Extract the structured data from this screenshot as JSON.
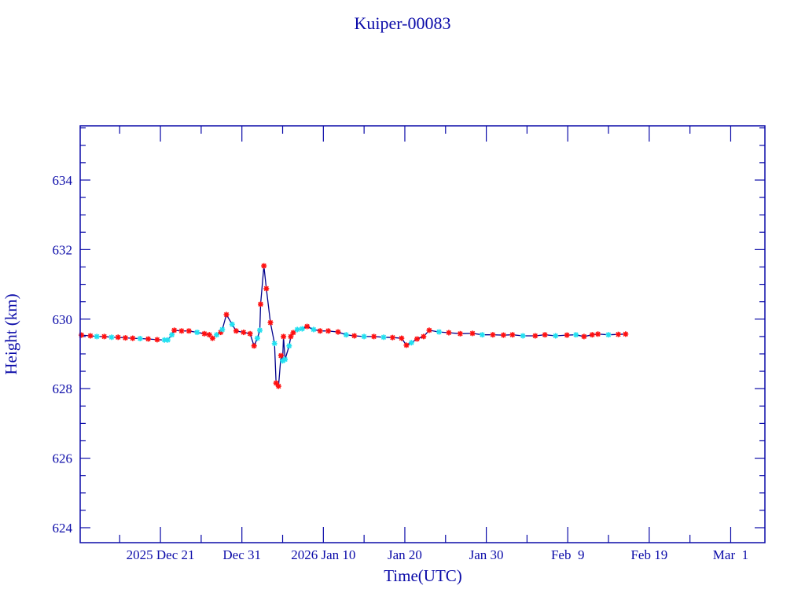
{
  "chart_data": {
    "type": "line",
    "title": "Kuiper-00083",
    "xlabel": "Time(UTC)",
    "ylabel": "Height (km)",
    "x_units": "days since 2025 Dec 21 (UTC)",
    "xlim": [
      -9.85,
      74.2
    ],
    "ylim": [
      623.57,
      635.56
    ],
    "grid": false,
    "legend": "none",
    "x_major_step": 10,
    "x_minor_step": 5,
    "y_major_step": 2,
    "y_minor_step": 0.5,
    "x_ticks": [
      {
        "value": 0,
        "label": "2025 Dec 21"
      },
      {
        "value": 10,
        "label": "Dec 31"
      },
      {
        "value": 20,
        "label": "2026 Jan 10"
      },
      {
        "value": 30,
        "label": "Jan 20"
      },
      {
        "value": 40,
        "label": "Jan 30"
      },
      {
        "value": 50,
        "label": "Feb  9"
      },
      {
        "value": 60,
        "label": "Feb 19"
      },
      {
        "value": 70,
        "label": "Mar  1"
      }
    ],
    "y_ticks": [
      {
        "value": 624,
        "label": "624"
      },
      {
        "value": 626,
        "label": "626"
      },
      {
        "value": 628,
        "label": "628"
      },
      {
        "value": 630,
        "label": "630"
      },
      {
        "value": 632,
        "label": "632"
      },
      {
        "value": 634,
        "label": "634"
      }
    ],
    "colors": {
      "axis": "#0a0aa8",
      "line": "#00008b",
      "marker_a": "#ff1010",
      "marker_b": "#22e0f0"
    },
    "series": [
      {
        "name": "height",
        "points": [
          [
            -9.7,
            629.54,
            "a"
          ],
          [
            -8.6,
            629.52,
            "a"
          ],
          [
            -7.8,
            629.5,
            "b"
          ],
          [
            -6.9,
            629.5,
            "a"
          ],
          [
            -6.0,
            629.48,
            "b"
          ],
          [
            -5.2,
            629.48,
            "a"
          ],
          [
            -4.3,
            629.46,
            "a"
          ],
          [
            -3.4,
            629.45,
            "a"
          ],
          [
            -2.5,
            629.44,
            "b"
          ],
          [
            -1.5,
            629.43,
            "a"
          ],
          [
            -0.4,
            629.41,
            "a"
          ],
          [
            0.5,
            629.4,
            "b"
          ],
          [
            0.9,
            629.4,
            "b"
          ],
          [
            1.4,
            629.55,
            "b"
          ],
          [
            1.7,
            629.68,
            "a"
          ],
          [
            2.6,
            629.66,
            "a"
          ],
          [
            3.5,
            629.66,
            "a"
          ],
          [
            4.5,
            629.62,
            "b"
          ],
          [
            5.4,
            629.58,
            "a"
          ],
          [
            6.0,
            629.55,
            "a"
          ],
          [
            6.4,
            629.45,
            "a"
          ],
          [
            6.9,
            629.55,
            "b"
          ],
          [
            7.4,
            629.62,
            "a"
          ],
          [
            7.6,
            629.7,
            "b"
          ],
          [
            8.1,
            630.13,
            "a"
          ],
          [
            8.8,
            629.85,
            "b"
          ],
          [
            9.3,
            629.66,
            "a"
          ],
          [
            10.2,
            629.62,
            "a"
          ],
          [
            11.0,
            629.58,
            "a"
          ],
          [
            11.5,
            629.23,
            "a"
          ],
          [
            11.9,
            629.45,
            "b"
          ],
          [
            12.2,
            629.68,
            "b"
          ],
          [
            12.3,
            630.43,
            "a"
          ],
          [
            12.7,
            631.53,
            "a"
          ],
          [
            13.0,
            630.88,
            "a"
          ],
          [
            13.5,
            629.9,
            "a"
          ],
          [
            14.0,
            629.3,
            "b"
          ],
          [
            14.2,
            628.16,
            "a"
          ],
          [
            14.5,
            628.07,
            "a"
          ],
          [
            14.8,
            628.95,
            "a"
          ],
          [
            15.0,
            628.8,
            "b"
          ],
          [
            15.1,
            629.5,
            "a"
          ],
          [
            15.3,
            628.84,
            "b"
          ],
          [
            15.8,
            629.23,
            "b"
          ],
          [
            16.0,
            629.5,
            "a"
          ],
          [
            16.3,
            629.61,
            "a"
          ],
          [
            16.8,
            629.7,
            "b"
          ],
          [
            17.4,
            629.72,
            "b"
          ],
          [
            18.0,
            629.79,
            "a"
          ],
          [
            18.8,
            629.7,
            "b"
          ],
          [
            19.6,
            629.66,
            "a"
          ],
          [
            20.6,
            629.66,
            "a"
          ],
          [
            21.8,
            629.63,
            "a"
          ],
          [
            22.8,
            629.55,
            "b"
          ],
          [
            23.8,
            629.52,
            "a"
          ],
          [
            25.0,
            629.5,
            "b"
          ],
          [
            26.2,
            629.5,
            "a"
          ],
          [
            27.4,
            629.48,
            "b"
          ],
          [
            28.5,
            629.47,
            "a"
          ],
          [
            29.6,
            629.45,
            "a"
          ],
          [
            30.2,
            629.25,
            "a"
          ],
          [
            30.8,
            629.32,
            "b"
          ],
          [
            31.5,
            629.43,
            "a"
          ],
          [
            32.3,
            629.5,
            "a"
          ],
          [
            33.0,
            629.68,
            "a"
          ],
          [
            34.2,
            629.63,
            "b"
          ],
          [
            35.4,
            629.61,
            "a"
          ],
          [
            36.8,
            629.58,
            "a"
          ],
          [
            38.3,
            629.59,
            "a"
          ],
          [
            39.5,
            629.55,
            "b"
          ],
          [
            40.8,
            629.55,
            "a"
          ],
          [
            42.1,
            629.54,
            "a"
          ],
          [
            43.2,
            629.55,
            "a"
          ],
          [
            44.5,
            629.52,
            "b"
          ],
          [
            46.0,
            629.52,
            "a"
          ],
          [
            47.2,
            629.55,
            "a"
          ],
          [
            48.5,
            629.52,
            "b"
          ],
          [
            49.9,
            629.54,
            "a"
          ],
          [
            51.0,
            629.55,
            "b"
          ],
          [
            52.0,
            629.5,
            "a"
          ],
          [
            53.0,
            629.55,
            "a"
          ],
          [
            53.7,
            629.57,
            "a"
          ],
          [
            55.0,
            629.55,
            "b"
          ],
          [
            56.2,
            629.56,
            "a"
          ],
          [
            57.1,
            629.57,
            "a"
          ]
        ]
      }
    ]
  }
}
